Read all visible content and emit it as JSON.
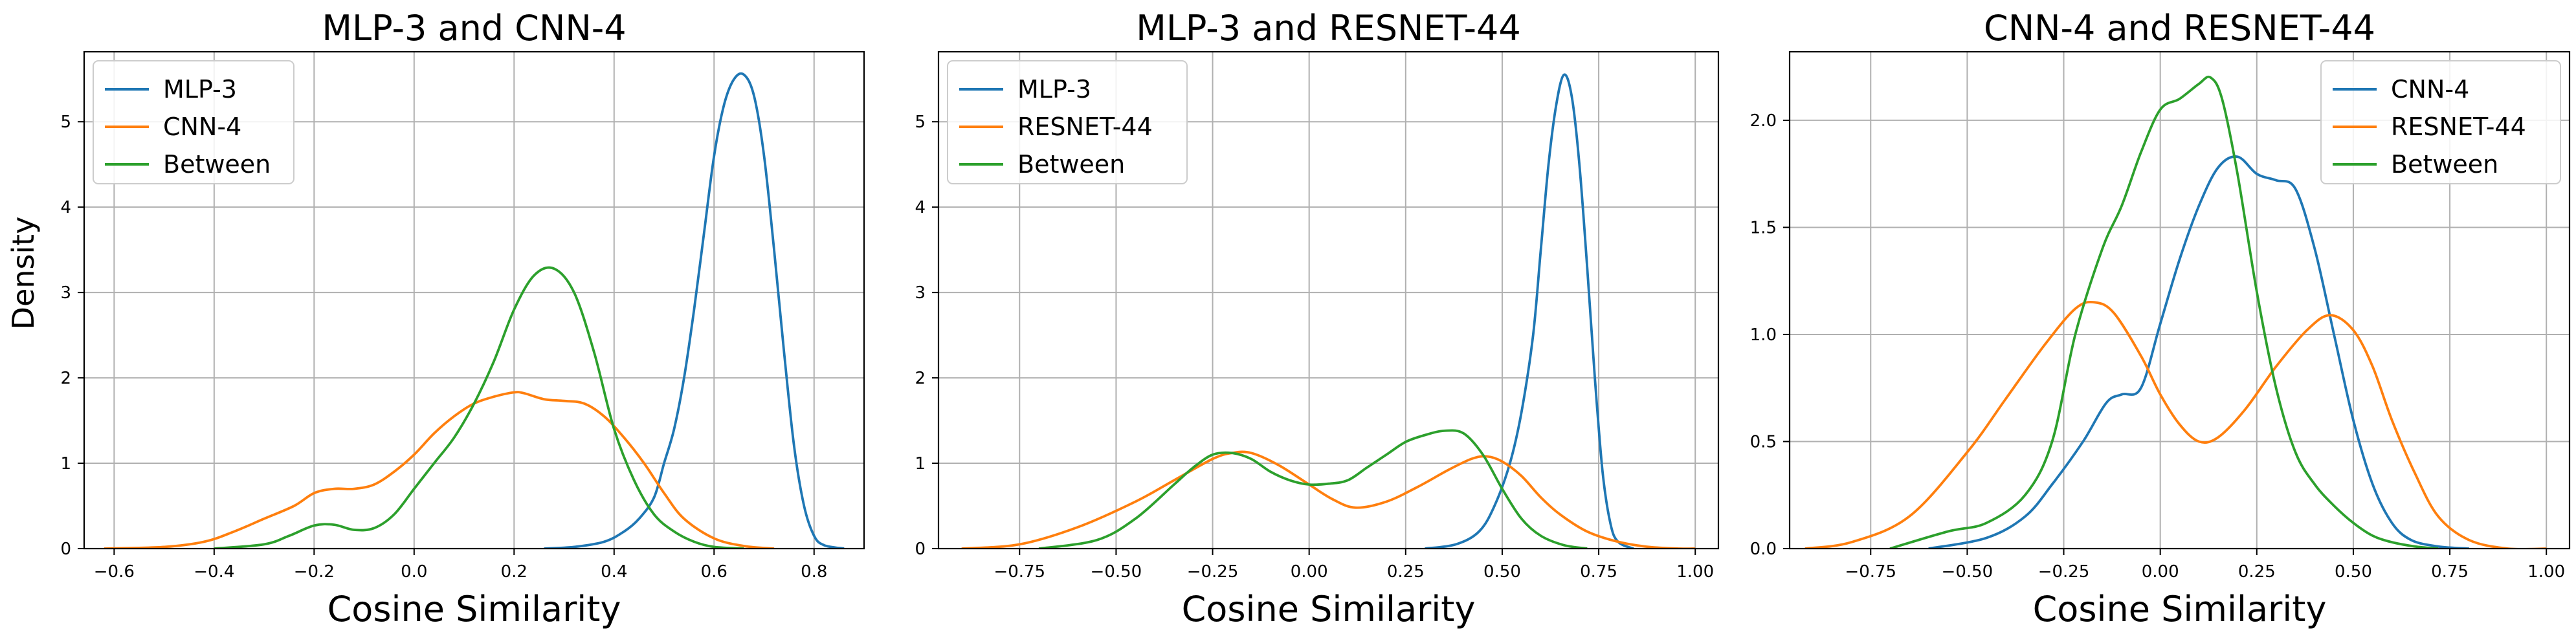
{
  "figure": {
    "ylabel": "Density",
    "background": "#ffffff"
  },
  "colors": {
    "blue": "#1f77b4",
    "orange": "#ff7f0e",
    "green": "#2ca02c",
    "grid": "#b0b0b0"
  },
  "chart_data": [
    {
      "type": "line",
      "title": "MLP-3 and CNN-4",
      "xlabel": "Cosine Similarity",
      "ylabel": "Density",
      "xlim": [
        -0.66,
        0.9
      ],
      "ylim": [
        0,
        5.82
      ],
      "xticks": [
        -0.6,
        -0.4,
        -0.2,
        0.0,
        0.2,
        0.4,
        0.6,
        0.8
      ],
      "xtick_labels": [
        "−0.6",
        "−0.4",
        "−0.2",
        "0.0",
        "0.2",
        "0.4",
        "0.6",
        "0.8"
      ],
      "yticks": [
        0,
        1,
        2,
        3,
        4,
        5
      ],
      "ytick_labels": [
        "0",
        "1",
        "2",
        "3",
        "4",
        "5"
      ],
      "grid": true,
      "legend_position": "top-left",
      "series": [
        {
          "name": "MLP-3",
          "color": "#1f77b4",
          "x": [
            0.26,
            0.32,
            0.38,
            0.42,
            0.45,
            0.48,
            0.5,
            0.52,
            0.54,
            0.56,
            0.58,
            0.6,
            0.62,
            0.64,
            0.66,
            0.68,
            0.7,
            0.72,
            0.74,
            0.76,
            0.78,
            0.8,
            0.82,
            0.86
          ],
          "y": [
            0,
            0.02,
            0.08,
            0.2,
            0.35,
            0.6,
            1.0,
            1.4,
            2.0,
            2.8,
            3.7,
            4.6,
            5.2,
            5.5,
            5.55,
            5.3,
            4.6,
            3.5,
            2.3,
            1.2,
            0.5,
            0.15,
            0.04,
            0
          ]
        },
        {
          "name": "CNN-4",
          "color": "#ff7f0e",
          "x": [
            -0.62,
            -0.5,
            -0.42,
            -0.36,
            -0.3,
            -0.24,
            -0.2,
            -0.16,
            -0.12,
            -0.08,
            -0.04,
            0.0,
            0.04,
            0.08,
            0.12,
            0.16,
            0.2,
            0.22,
            0.26,
            0.3,
            0.34,
            0.38,
            0.42,
            0.46,
            0.5,
            0.54,
            0.6,
            0.66,
            0.72
          ],
          "y": [
            0,
            0.02,
            0.08,
            0.2,
            0.35,
            0.5,
            0.65,
            0.7,
            0.7,
            0.75,
            0.9,
            1.1,
            1.35,
            1.55,
            1.7,
            1.78,
            1.83,
            1.82,
            1.75,
            1.73,
            1.7,
            1.55,
            1.3,
            1.0,
            0.65,
            0.35,
            0.12,
            0.03,
            0
          ]
        },
        {
          "name": "Between",
          "color": "#2ca02c",
          "x": [
            -0.4,
            -0.3,
            -0.25,
            -0.2,
            -0.16,
            -0.12,
            -0.08,
            -0.04,
            0.0,
            0.04,
            0.08,
            0.12,
            0.16,
            0.2,
            0.24,
            0.28,
            0.32,
            0.36,
            0.4,
            0.44,
            0.48,
            0.52,
            0.56,
            0.6,
            0.66
          ],
          "y": [
            0,
            0.05,
            0.15,
            0.27,
            0.28,
            0.22,
            0.24,
            0.4,
            0.7,
            1.0,
            1.3,
            1.7,
            2.2,
            2.8,
            3.2,
            3.28,
            3.0,
            2.3,
            1.4,
            0.8,
            0.4,
            0.2,
            0.08,
            0.02,
            0
          ]
        }
      ]
    },
    {
      "type": "line",
      "title": "MLP-3 and RESNET-44",
      "xlabel": "Cosine Similarity",
      "xlim": [
        -0.96,
        1.06
      ],
      "ylim": [
        0,
        5.82
      ],
      "xticks": [
        -0.75,
        -0.5,
        -0.25,
        0.0,
        0.25,
        0.5,
        0.75,
        1.0
      ],
      "xtick_labels": [
        "−0.75",
        "−0.50",
        "−0.25",
        "0.00",
        "0.25",
        "0.50",
        "0.75",
        "1.00"
      ],
      "yticks": [
        0,
        1,
        2,
        3,
        4,
        5
      ],
      "ytick_labels": [
        "0",
        "1",
        "2",
        "3",
        "4",
        "5"
      ],
      "grid": true,
      "legend_position": "top-left",
      "series": [
        {
          "name": "MLP-3",
          "color": "#1f77b4",
          "x": [
            0.3,
            0.38,
            0.44,
            0.48,
            0.52,
            0.55,
            0.58,
            0.6,
            0.62,
            0.64,
            0.66,
            0.68,
            0.7,
            0.72,
            0.74,
            0.76,
            0.78,
            0.8,
            0.84
          ],
          "y": [
            0,
            0.05,
            0.2,
            0.5,
            1.0,
            1.6,
            2.5,
            3.5,
            4.5,
            5.2,
            5.55,
            5.3,
            4.5,
            3.3,
            2.0,
            0.9,
            0.3,
            0.08,
            0
          ]
        },
        {
          "name": "RESNET-44",
          "color": "#ff7f0e",
          "x": [
            -0.9,
            -0.75,
            -0.6,
            -0.45,
            -0.35,
            -0.25,
            -0.2,
            -0.15,
            -0.08,
            0.0,
            0.06,
            0.12,
            0.2,
            0.28,
            0.36,
            0.42,
            0.46,
            0.5,
            0.55,
            0.6,
            0.65,
            0.72,
            0.8,
            0.88,
            0.96,
            1.0
          ],
          "y": [
            0,
            0.05,
            0.25,
            0.55,
            0.8,
            1.05,
            1.12,
            1.12,
            0.98,
            0.75,
            0.58,
            0.48,
            0.55,
            0.72,
            0.92,
            1.05,
            1.08,
            1.02,
            0.85,
            0.6,
            0.4,
            0.2,
            0.08,
            0.02,
            0,
            0
          ]
        },
        {
          "name": "Between",
          "color": "#2ca02c",
          "x": [
            -0.7,
            -0.55,
            -0.45,
            -0.35,
            -0.3,
            -0.25,
            -0.2,
            -0.15,
            -0.1,
            -0.05,
            0.0,
            0.05,
            0.1,
            0.15,
            0.2,
            0.25,
            0.3,
            0.35,
            0.4,
            0.45,
            0.5,
            0.55,
            0.6,
            0.66,
            0.72
          ],
          "y": [
            0,
            0.1,
            0.35,
            0.75,
            0.95,
            1.1,
            1.12,
            1.05,
            0.9,
            0.8,
            0.75,
            0.76,
            0.8,
            0.95,
            1.1,
            1.25,
            1.33,
            1.38,
            1.35,
            1.1,
            0.7,
            0.35,
            0.15,
            0.04,
            0
          ]
        }
      ]
    },
    {
      "type": "line",
      "title": "CNN-4 and RESNET-44",
      "xlabel": "Cosine Similarity",
      "xlim": [
        -0.96,
        1.06
      ],
      "ylim": [
        0,
        2.32
      ],
      "xticks": [
        -0.75,
        -0.5,
        -0.25,
        0.0,
        0.25,
        0.5,
        0.75,
        1.0
      ],
      "xtick_labels": [
        "−0.75",
        "−0.50",
        "−0.25",
        "0.00",
        "0.25",
        "0.50",
        "0.75",
        "1.00"
      ],
      "yticks": [
        0,
        0.5,
        1.0,
        1.5,
        2.0
      ],
      "ytick_labels": [
        "0.0",
        "0.5",
        "1.0",
        "1.5",
        "2.0"
      ],
      "grid": true,
      "legend_position": "top-right",
      "series": [
        {
          "name": "CNN-4",
          "color": "#1f77b4",
          "x": [
            -0.6,
            -0.45,
            -0.35,
            -0.28,
            -0.2,
            -0.14,
            -0.1,
            -0.05,
            0.0,
            0.05,
            0.1,
            0.15,
            0.2,
            0.25,
            0.3,
            0.35,
            0.4,
            0.45,
            0.5,
            0.55,
            0.6,
            0.65,
            0.72,
            0.8
          ],
          "y": [
            0,
            0.05,
            0.15,
            0.3,
            0.5,
            0.68,
            0.72,
            0.75,
            1.05,
            1.35,
            1.6,
            1.78,
            1.83,
            1.75,
            1.72,
            1.68,
            1.4,
            1.0,
            0.6,
            0.3,
            0.12,
            0.04,
            0.01,
            0
          ]
        },
        {
          "name": "RESNET-44",
          "color": "#ff7f0e",
          "x": [
            -0.92,
            -0.8,
            -0.65,
            -0.5,
            -0.4,
            -0.3,
            -0.22,
            -0.17,
            -0.12,
            -0.05,
            0.0,
            0.05,
            0.1,
            0.15,
            0.22,
            0.3,
            0.38,
            0.44,
            0.5,
            0.55,
            0.6,
            0.66,
            0.72,
            0.8,
            0.9,
            1.0
          ],
          "y": [
            0,
            0.03,
            0.15,
            0.45,
            0.7,
            0.95,
            1.12,
            1.15,
            1.1,
            0.9,
            0.72,
            0.58,
            0.5,
            0.52,
            0.65,
            0.85,
            1.02,
            1.09,
            1.02,
            0.85,
            0.6,
            0.35,
            0.15,
            0.04,
            0,
            0
          ]
        },
        {
          "name": "Between",
          "color": "#2ca02c",
          "x": [
            -0.7,
            -0.55,
            -0.45,
            -0.35,
            -0.28,
            -0.22,
            -0.15,
            -0.1,
            -0.05,
            0.0,
            0.05,
            0.1,
            0.13,
            0.16,
            0.2,
            0.25,
            0.3,
            0.35,
            0.4,
            0.45,
            0.5,
            0.55,
            0.6,
            0.66,
            0.72
          ],
          "y": [
            0,
            0.08,
            0.12,
            0.25,
            0.5,
            1.0,
            1.4,
            1.6,
            1.85,
            2.05,
            2.1,
            2.17,
            2.2,
            2.1,
            1.75,
            1.2,
            0.75,
            0.45,
            0.3,
            0.2,
            0.12,
            0.06,
            0.03,
            0.01,
            0
          ]
        }
      ]
    }
  ]
}
